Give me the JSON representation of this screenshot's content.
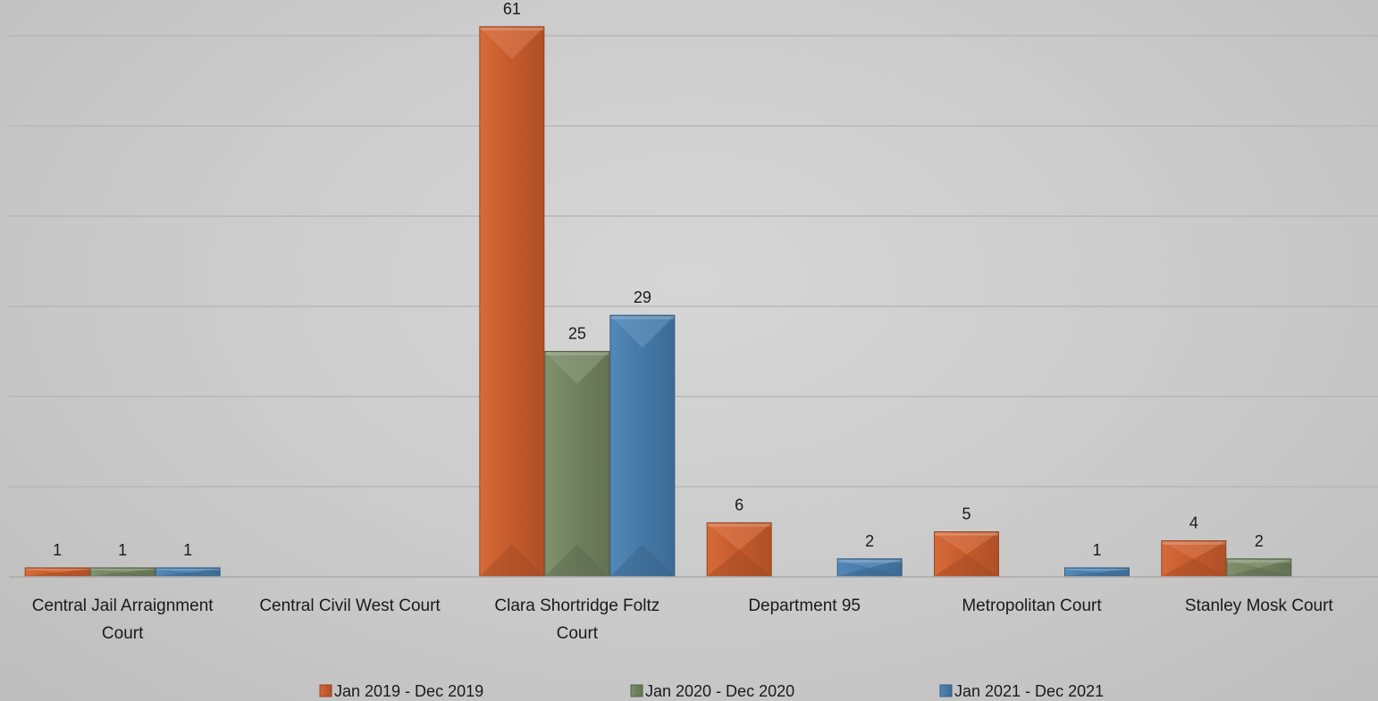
{
  "chart_data": {
    "type": "bar",
    "title": "",
    "xlabel": "",
    "ylabel": "",
    "ylim": [
      0,
      60
    ],
    "y_gridlines": [
      10,
      20,
      30,
      40,
      50,
      60
    ],
    "grid": true,
    "legend_position": "bottom",
    "categories": [
      [
        "Central Jail Arraignment",
        "Court"
      ],
      [
        "Central Civil West Court"
      ],
      [
        "Clara Shortridge Foltz",
        "Court"
      ],
      [
        "Department 95"
      ],
      [
        "Metropolitan Court"
      ],
      [
        "Stanley Mosk Court"
      ]
    ],
    "series": [
      {
        "name": "Jan 2019 - Dec 2019",
        "color": "#d4622f",
        "values": [
          1,
          null,
          61,
          6,
          5,
          4
        ]
      },
      {
        "name": "Jan 2020 - Dec 2020",
        "color": "#7a8b66",
        "values": [
          1,
          null,
          25,
          null,
          null,
          2
        ]
      },
      {
        "name": "Jan 2021 - Dec 2021",
        "color": "#4a82b4",
        "values": [
          1,
          null,
          29,
          2,
          1,
          null
        ]
      }
    ]
  }
}
